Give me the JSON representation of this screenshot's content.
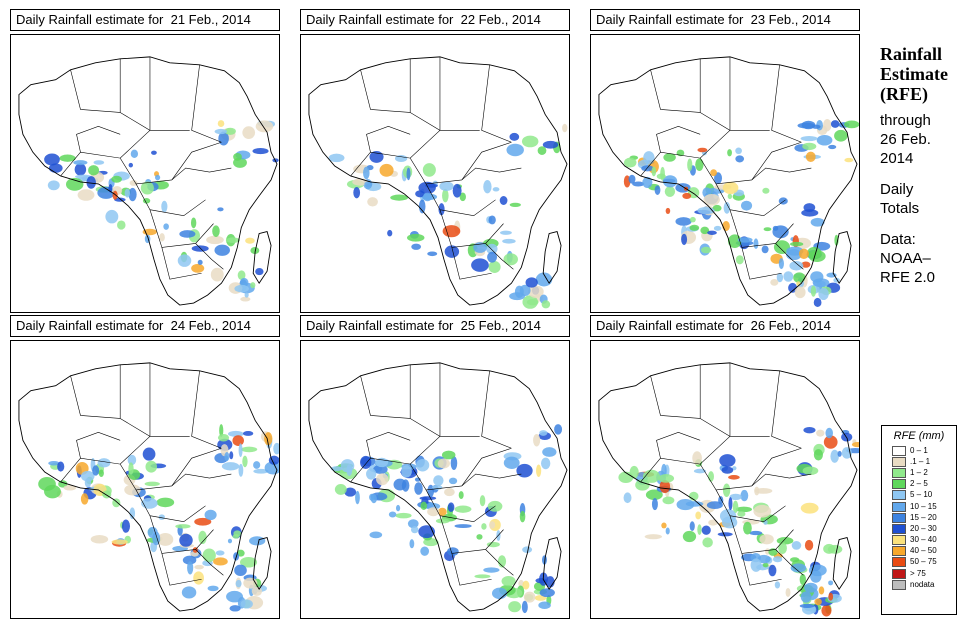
{
  "panels": [
    {
      "title": "Daily Rainfall estimate for  21 Feb., 2014",
      "intensity": 0.55
    },
    {
      "title": "Daily Rainfall estimate for  22 Feb., 2014",
      "intensity": 0.5
    },
    {
      "title": "Daily Rainfall estimate for  23 Feb., 2014",
      "intensity": 0.9
    },
    {
      "title": "Daily Rainfall estimate for  24 Feb., 2014",
      "intensity": 0.8
    },
    {
      "title": "Daily Rainfall estimate for  25 Feb., 2014",
      "intensity": 0.75
    },
    {
      "title": "Daily Rainfall estimate for  26 Feb., 2014",
      "intensity": 0.85
    }
  ],
  "sidebar": {
    "title_line1": "Rainfall",
    "title_line2": "Estimate",
    "title_line3": "(RFE)",
    "through": "through",
    "date_line1": "26 Feb.",
    "date_line2": "2014",
    "daily_line1": "Daily",
    "daily_line2": "Totals",
    "data_label": "Data:",
    "data_line1": "NOAA–",
    "data_line2": "RFE 2.0"
  },
  "legend": {
    "title": "RFE (mm)",
    "items": [
      {
        "label": "0 – 1",
        "color": "#ffffff"
      },
      {
        "label": ".1 – 1",
        "color": "#e9dcc4"
      },
      {
        "label": "1 – 2",
        "color": "#90e98c"
      },
      {
        "label": "2 – 5",
        "color": "#5fd75c"
      },
      {
        "label": "5 – 10",
        "color": "#8fc7f2"
      },
      {
        "label": "10 – 15",
        "color": "#62a8ec"
      },
      {
        "label": "15 – 20",
        "color": "#3d83e0"
      },
      {
        "label": "20 – 30",
        "color": "#1f50d2"
      },
      {
        "label": "30 – 40",
        "color": "#fbe27c"
      },
      {
        "label": "40 – 50",
        "color": "#f7a82c"
      },
      {
        "label": "50 – 75",
        "color": "#e94c14"
      },
      {
        "label": "> 75",
        "color": "#c01818"
      },
      {
        "label": "nodata",
        "color": "#bdbdbd"
      }
    ]
  }
}
